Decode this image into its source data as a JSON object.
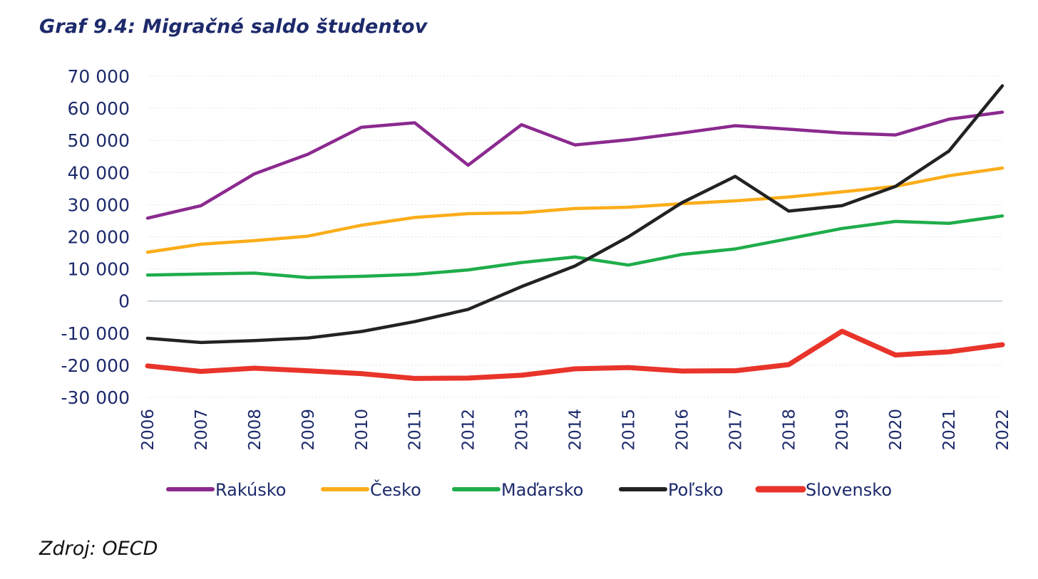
{
  "chart_data": {
    "type": "line",
    "title": "Graf 9.4: Migračné saldo študentov",
    "xlabel": "",
    "ylabel": "",
    "x": [
      "2006",
      "2007",
      "2008",
      "2009",
      "2010",
      "2011",
      "2012",
      "2013",
      "2014",
      "2015",
      "2016",
      "2017",
      "2018",
      "2019",
      "2020",
      "2021",
      "2022"
    ],
    "ylim": [
      -30000,
      70000
    ],
    "yticks": [
      70000,
      60000,
      50000,
      40000,
      30000,
      20000,
      10000,
      0,
      -10000,
      -20000,
      -30000
    ],
    "ytick_labels": [
      "70 000",
      "60 000",
      "50 000",
      "40 000",
      "30 000",
      "20 000",
      "10 000",
      "0",
      "-10 000",
      "-20 000",
      "-30 000"
    ],
    "grid": "horizontal dotted",
    "legend_position": "bottom",
    "series": [
      {
        "name": "Rakúsko",
        "color": "#8b2a8f",
        "values": [
          25800,
          29700,
          39600,
          45700,
          54100,
          55500,
          42300,
          54900,
          48600,
          50200,
          52300,
          54600,
          53500,
          52300,
          51700,
          56600,
          58800
        ]
      },
      {
        "name": "Česko",
        "color": "#fbad1a",
        "values": [
          15200,
          17700,
          18800,
          20200,
          23600,
          26000,
          27200,
          27500,
          28800,
          29200,
          30300,
          31200,
          32400,
          34000,
          35700,
          39000,
          41400
        ]
      },
      {
        "name": "Maďarsko",
        "color": "#1fad4b",
        "values": [
          8100,
          8400,
          8700,
          7300,
          7700,
          8300,
          9700,
          12000,
          13700,
          11200,
          14500,
          16200,
          19400,
          22600,
          24800,
          24200,
          26500
        ]
      },
      {
        "name": "Poľsko",
        "color": "#222222",
        "values": [
          -11600,
          -12900,
          -12300,
          -11500,
          -9500,
          -6400,
          -2600,
          4500,
          10900,
          20000,
          30600,
          38800,
          28000,
          29700,
          35700,
          46700,
          67000
        ]
      },
      {
        "name": "Slovensko",
        "color": "#e8342a",
        "values": [
          -20200,
          -21900,
          -20900,
          -21700,
          -22600,
          -24100,
          -24000,
          -23100,
          -21100,
          -20700,
          -21800,
          -21700,
          -19800,
          -9400,
          -16800,
          -15800,
          -13600
        ]
      }
    ]
  },
  "source": "Zdroj: OECD"
}
